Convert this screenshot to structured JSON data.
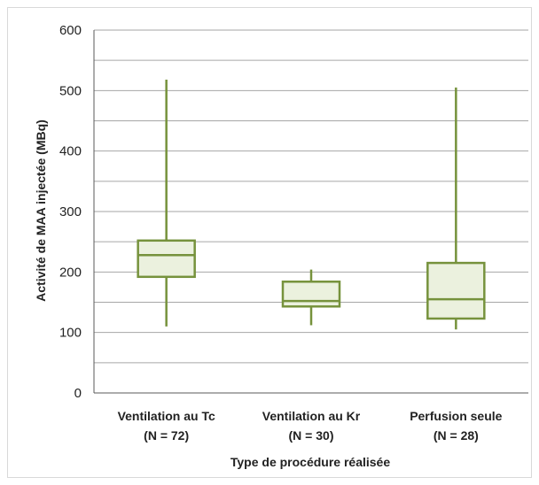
{
  "chart_data": {
    "type": "boxplot",
    "xlabel": "Type de procédure réalisée",
    "ylabel": "Activité de MAA injectée (MBq)",
    "ylim": [
      0,
      600
    ],
    "yticks": [
      0,
      100,
      200,
      300,
      400,
      500,
      600
    ],
    "grid": true,
    "grid_step": 50,
    "colors": {
      "box_stroke": "#76923c",
      "box_fill": "#ebf1de",
      "grid": "#a6a6a6",
      "axis": "#595959"
    },
    "categories": [
      {
        "label": "Ventilation au Tc",
        "n_label": "(N = 72)"
      },
      {
        "label": "Ventilation au Kr",
        "n_label": "(N = 30)"
      },
      {
        "label": "Perfusion seule",
        "n_label": "(N = 28)"
      }
    ],
    "boxes": [
      {
        "min": 110,
        "q1": 192,
        "median": 228,
        "q3": 252,
        "max": 518
      },
      {
        "min": 112,
        "q1": 143,
        "median": 152,
        "q3": 184,
        "max": 204
      },
      {
        "min": 105,
        "q1": 123,
        "median": 155,
        "q3": 215,
        "max": 505
      }
    ]
  }
}
